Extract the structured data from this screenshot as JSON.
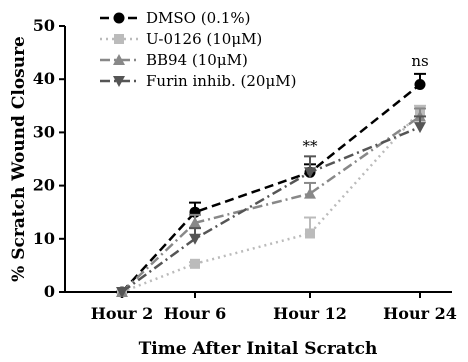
{
  "chart_data": {
    "type": "line",
    "title": "",
    "xlabel": "Time After Inital Scratch",
    "ylabel": "% Scratch Wound Closure",
    "categories": [
      "Hour 2",
      "Hour 6",
      "Hour 12",
      "Hour 24"
    ],
    "ylim": [
      0,
      50
    ],
    "yticks": [
      "0",
      "10",
      "20",
      "30",
      "40",
      "50"
    ],
    "legend_position": "top-left",
    "series": [
      {
        "name": "DMSO (0.1%)",
        "values": [
          0,
          15,
          22.5,
          39
        ],
        "errors": [
          0,
          1.8,
          1.5,
          2
        ],
        "color": "#000000",
        "marker": "circle",
        "dash": "dashed"
      },
      {
        "name": "U-0126 (10μM)",
        "values": [
          0,
          5.3,
          11,
          34
        ],
        "errors": [
          0,
          0.3,
          3,
          1
        ],
        "color": "#bbbbbb",
        "marker": "square",
        "dash": "dotted"
      },
      {
        "name": "BB94 (10μM)",
        "values": [
          0,
          13,
          18.5,
          33
        ],
        "errors": [
          0,
          1.5,
          2,
          1.5
        ],
        "color": "#888888",
        "marker": "triangle-up",
        "dash": "dashdot"
      },
      {
        "name": "Furin inhib. (20μM)",
        "values": [
          0,
          10,
          22.5,
          31
        ],
        "errors": [
          0,
          2,
          3,
          2
        ],
        "color": "#555555",
        "marker": "triangle-down",
        "dash": "dashdot"
      }
    ],
    "annotations": [
      {
        "text": "**",
        "category": "Hour 12",
        "y": 26.5
      },
      {
        "text": "ns",
        "category": "Hour 24",
        "y": 42.5
      }
    ]
  }
}
